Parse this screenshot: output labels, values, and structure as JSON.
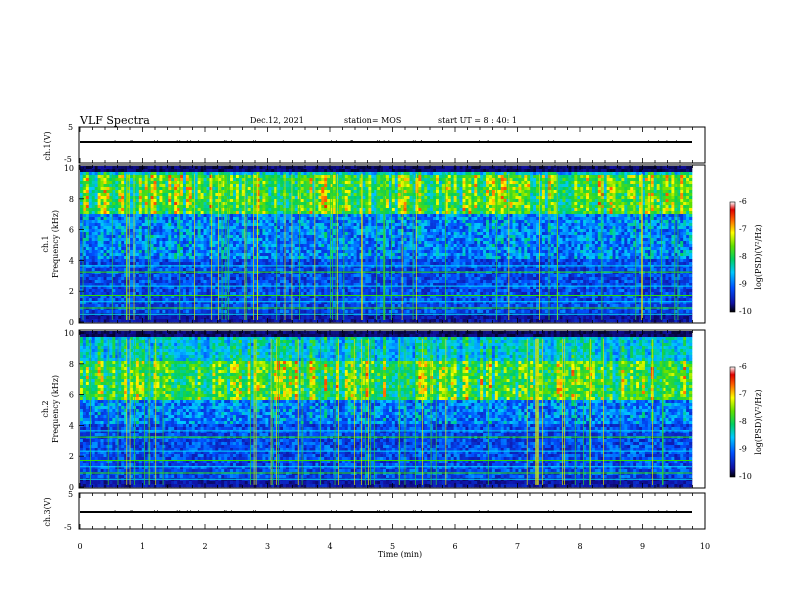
{
  "header": {
    "title": "VLF Spectra",
    "date": "Dec.12, 2021",
    "station": "station= MOS",
    "start": "start  UT =  8 : 40: 1"
  },
  "chart_data": {
    "type": "heatmap",
    "x_axis": {
      "label": "Time (min)",
      "range": [
        0,
        10
      ],
      "ticks": [
        "0",
        "1",
        "2",
        "3",
        "4",
        "5",
        "6",
        "7",
        "8",
        "9",
        "10"
      ]
    },
    "panels": [
      {
        "id": "ch1-waveform",
        "ylabel": "ch.1(V)",
        "ylim": [
          -5,
          5
        ],
        "ticks": [
          "5",
          "-5"
        ],
        "trace_value": 0
      },
      {
        "id": "ch1-spectrogram",
        "ylabel": "ch.1",
        "ylabel2": "Frequency (kHz)",
        "ylim": [
          0,
          10
        ],
        "ticks": [
          "10",
          "8",
          "6",
          "4",
          "2",
          "0"
        ],
        "peak_band_khz": [
          7,
          9.5
        ],
        "colorbar": {
          "range": [
            -10,
            -6
          ],
          "ticks": [
            "-6",
            "-7",
            "-8",
            "-9",
            "-10"
          ],
          "label": "log(PSD)(V²/Hz)"
        }
      },
      {
        "id": "ch2-spectrogram",
        "ylabel": "ch.2",
        "ylabel2": "Frequency (kHz)",
        "ylim": [
          0,
          10
        ],
        "ticks": [
          "10",
          "8",
          "6",
          "4",
          "2",
          "0"
        ],
        "peak_band_khz": [
          5.5,
          8
        ],
        "colorbar": {
          "range": [
            -10,
            -6
          ],
          "ticks": [
            "-6",
            "-7",
            "-8",
            "-9",
            "-10"
          ],
          "label": "log(PSD)(V²/Hz)"
        }
      },
      {
        "id": "ch3-waveform",
        "ylabel": "ch.3(V)",
        "ylim": [
          -5,
          5
        ],
        "ticks": [
          "5",
          "-5"
        ],
        "trace_value": 0
      }
    ]
  }
}
